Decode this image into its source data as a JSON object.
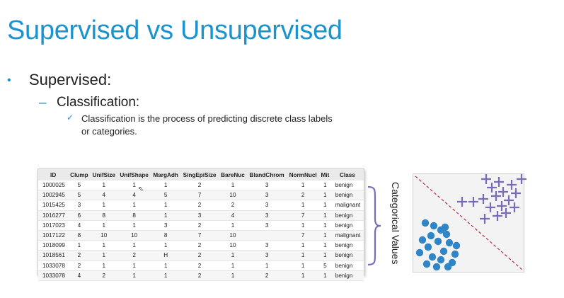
{
  "slide": {
    "title": "Supervised vs Unsupervised",
    "bullet1": "Supervised:",
    "bullet2": "Classification:",
    "bullet3": "Classification is the process of predicting discrete class labels or categories."
  },
  "table": {
    "headers": [
      "ID",
      "Clump",
      "UnifSize",
      "UnifShape",
      "MargAdh",
      "SingEpiSize",
      "BareNuc",
      "BlandChrom",
      "NormNucl",
      "Mit",
      "Class"
    ],
    "rows": [
      [
        "1000025",
        "5",
        "1",
        "1",
        "1",
        "2",
        "1",
        "3",
        "1",
        "1",
        "benign"
      ],
      [
        "1002945",
        "5",
        "4",
        "4",
        "5",
        "7",
        "10",
        "3",
        "2",
        "1",
        "benign"
      ],
      [
        "1015425",
        "3",
        "1",
        "1",
        "1",
        "2",
        "2",
        "3",
        "1",
        "1",
        "malignant"
      ],
      [
        "1016277",
        "6",
        "8",
        "8",
        "1",
        "3",
        "4",
        "3",
        "7",
        "1",
        "benign"
      ],
      [
        "1017023",
        "4",
        "1",
        "1",
        "3",
        "2",
        "1",
        "3",
        "1",
        "1",
        "benign"
      ],
      [
        "1017122",
        "8",
        "10",
        "10",
        "8",
        "7",
        "10",
        "",
        "7",
        "1",
        "malignant"
      ],
      [
        "1018099",
        "1",
        "1",
        "1",
        "1",
        "2",
        "10",
        "3",
        "1",
        "1",
        "benign"
      ],
      [
        "1018561",
        "2",
        "1",
        "2",
        "H",
        "2",
        "1",
        "3",
        "1",
        "1",
        "benign"
      ],
      [
        "1033078",
        "2",
        "1",
        "1",
        "1",
        "2",
        "1",
        "1",
        "1",
        "5",
        "benign"
      ],
      [
        "1033078",
        "4",
        "2",
        "1",
        "1",
        "2",
        "1",
        "2",
        "1",
        "1",
        "benign"
      ]
    ]
  },
  "side_label": "Categorical Values",
  "colors": {
    "accent": "#1a93cf",
    "circle": "#2e86c8",
    "plus": "#7b6bb5",
    "divider": "#b03040"
  },
  "scatter_icons": {
    "class_a": "circle-marker",
    "class_b": "plus-marker"
  }
}
